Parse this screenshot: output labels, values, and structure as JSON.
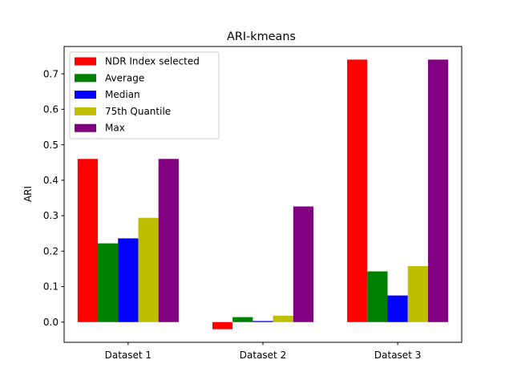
{
  "chart_data": {
    "type": "bar",
    "title": "ARI-kmeans",
    "xlabel": "",
    "ylabel": "ARI",
    "categories": [
      "Dataset 1",
      "Dataset 2",
      "Dataset 3"
    ],
    "ylim": [
      -0.057,
      0.777
    ],
    "yticks": [
      0.0,
      0.1,
      0.2,
      0.3,
      0.4,
      0.5,
      0.6,
      0.7
    ],
    "ytick_labels": [
      "0.0",
      "0.1",
      "0.2",
      "0.3",
      "0.4",
      "0.5",
      "0.6",
      "0.7"
    ],
    "legend_position": "top-left",
    "grid": false,
    "series": [
      {
        "name": "NDR Index selected",
        "color": "#ff0000",
        "values": [
          0.46,
          -0.02,
          0.74
        ]
      },
      {
        "name": "Average",
        "color": "#008000",
        "values": [
          0.222,
          0.014,
          0.143
        ]
      },
      {
        "name": "Median",
        "color": "#0000ff",
        "values": [
          0.236,
          0.003,
          0.075
        ]
      },
      {
        "name": "75th Quantile",
        "color": "#bfbf00",
        "values": [
          0.294,
          0.018,
          0.158
        ]
      },
      {
        "name": "Max",
        "color": "#800080",
        "values": [
          0.46,
          0.326,
          0.74
        ]
      }
    ]
  }
}
